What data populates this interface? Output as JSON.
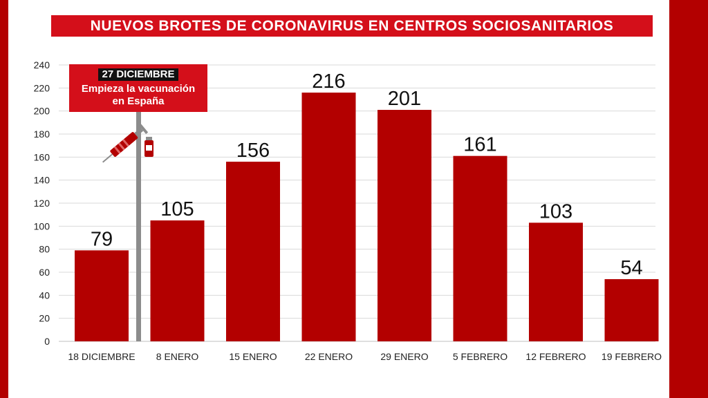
{
  "chart_data": {
    "type": "bar",
    "title": "NUEVOS BROTES DE CORONAVIRUS EN CENTROS SOCIOSANITARIOS",
    "categories": [
      "18 DICIEMBRE",
      "8 ENERO",
      "15 ENERO",
      "22 ENERO",
      "29 ENERO",
      "5 FEBRERO",
      "12 FEBRERO",
      "19 FEBRERO"
    ],
    "values": [
      79,
      105,
      156,
      216,
      201,
      161,
      103,
      54
    ],
    "value_labels": [
      "79",
      "105",
      "156",
      "216",
      "201",
      "161",
      "103",
      "54"
    ],
    "ylim": [
      0,
      240
    ],
    "yticks": [
      0,
      20,
      40,
      60,
      80,
      100,
      120,
      140,
      160,
      180,
      200,
      220,
      240
    ],
    "grid": true,
    "xlabel": "",
    "ylabel": "",
    "annotation": {
      "date": "27 DICIEMBRE",
      "text_line1": "Empieza la vacunación",
      "text_line2": "en España",
      "icon": "syringe-icon"
    }
  },
  "colors": {
    "bar": "#b30000",
    "title_bg": "#d40f1a",
    "frame": "#b30000",
    "grid": "#d9d9d9",
    "marker_line": "#8c8c8c"
  }
}
